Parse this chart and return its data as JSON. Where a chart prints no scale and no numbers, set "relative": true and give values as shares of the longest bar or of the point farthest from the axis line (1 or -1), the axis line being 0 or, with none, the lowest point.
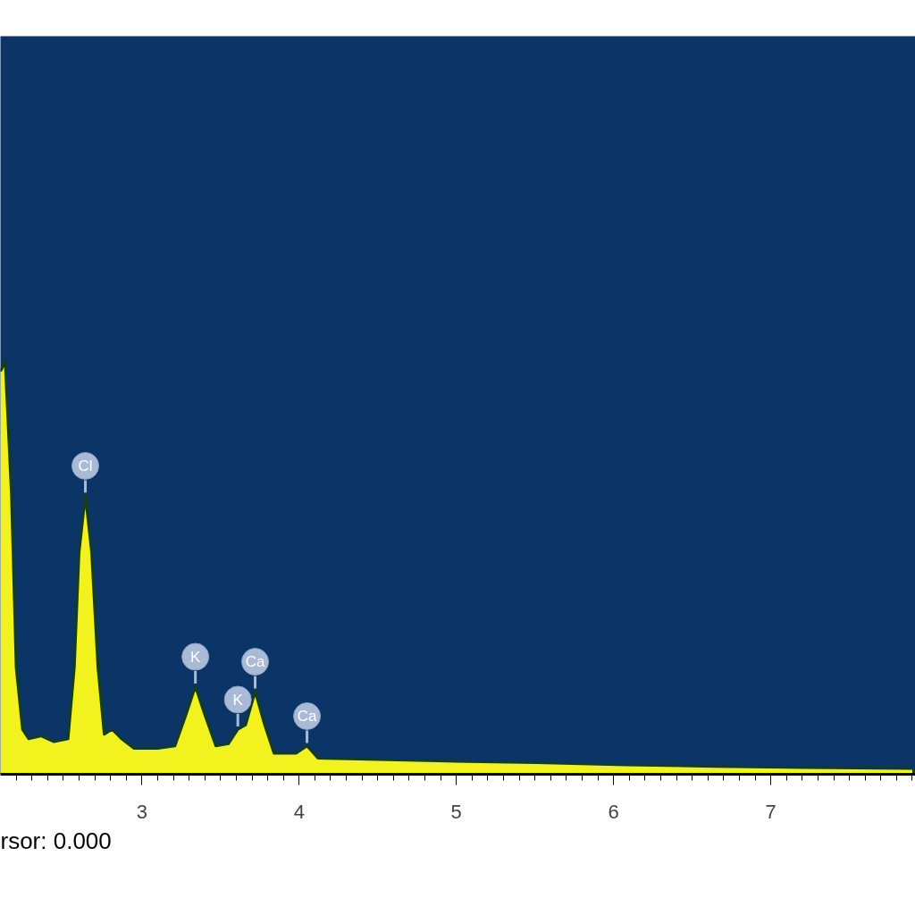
{
  "chart_data": {
    "type": "area",
    "relative": true,
    "x": [
      2.1,
      2.13,
      2.17,
      2.2,
      2.24,
      2.28,
      2.36,
      2.44,
      2.53,
      2.57,
      2.6,
      2.64,
      2.68,
      2.72,
      2.76,
      2.81,
      2.87,
      2.95,
      3.1,
      3.21,
      3.28,
      3.34,
      3.4,
      3.47,
      3.55,
      3.61,
      3.66,
      3.72,
      3.78,
      3.84,
      3.98,
      4.05,
      4.12,
      4.38,
      4.94,
      5.51,
      6.08,
      6.65,
      7.22,
      7.9
    ],
    "series": [
      {
        "color": "#f2f21e",
        "values": [
          0.977,
          1.0,
          0.676,
          0.259,
          0.109,
          0.086,
          0.093,
          0.079,
          0.086,
          0.259,
          0.537,
          0.676,
          0.537,
          0.259,
          0.097,
          0.109,
          0.086,
          0.063,
          0.063,
          0.069,
          0.144,
          0.213,
          0.144,
          0.069,
          0.074,
          0.109,
          0.12,
          0.201,
          0.12,
          0.051,
          0.051,
          0.069,
          0.039,
          0.037,
          0.032,
          0.028,
          0.023,
          0.019,
          0.016,
          0.014
        ]
      }
    ],
    "xlim": [
      2.1,
      7.92
    ],
    "xticks": [
      3,
      4,
      5,
      6,
      7
    ],
    "annotations": [
      {
        "text": "Cl",
        "x": 2.64,
        "y": 0.676
      },
      {
        "text": "K",
        "x": 3.34,
        "y": 0.213
      },
      {
        "text": "K",
        "x": 3.61,
        "y": 0.109
      },
      {
        "text": "Ca",
        "x": 3.72,
        "y": 0.201
      },
      {
        "text": "Ca",
        "x": 4.05,
        "y": 0.069
      },
      "rsor: 0.000"
    ]
  }
}
